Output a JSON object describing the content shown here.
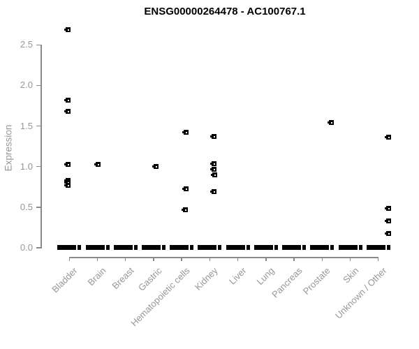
{
  "chart_data": {
    "type": "scatter",
    "subtype": "strip-plot",
    "title": "ENSG00000264478 - AC100767.1",
    "ylabel": "Expression",
    "xlabel": "",
    "ylim": [
      0,
      2.75
    ],
    "grid": false,
    "legend": "none",
    "marker": "small-open-square",
    "yticks": [
      {
        "value": 0.0,
        "label": "0.0"
      },
      {
        "value": 0.5,
        "label": "0.5"
      },
      {
        "value": 1.0,
        "label": "1.0"
      },
      {
        "value": 1.5,
        "label": "1.5"
      },
      {
        "value": 2.0,
        "label": "2.0"
      },
      {
        "value": 2.5,
        "label": "2.5"
      }
    ],
    "categories": [
      "Bladder",
      "Brain",
      "Breast",
      "Gastric",
      "Hematopoietic cells",
      "Kidney",
      "Liver",
      "Lung",
      "Pancreas",
      "Prostate",
      "Skin",
      "Unknown / Other"
    ],
    "groups": [
      {
        "label": "Bladder",
        "nonzero_values": [
          2.69,
          1.82,
          1.68,
          1.03,
          0.83,
          0.8,
          0.77
        ],
        "jitter_dx": [
          -2,
          -2,
          -2,
          -2,
          -2,
          -2,
          -2
        ],
        "zero_cluster": true
      },
      {
        "label": "Brain",
        "nonzero_values": [
          1.03
        ],
        "jitter_dx": [
          1
        ],
        "zero_cluster": true
      },
      {
        "label": "Breast",
        "nonzero_values": [],
        "jitter_dx": [],
        "zero_cluster": true
      },
      {
        "label": "Gastric",
        "nonzero_values": [
          1.0
        ],
        "jitter_dx": [
          4
        ],
        "zero_cluster": true
      },
      {
        "label": "Hematopoietic cells",
        "nonzero_values": [
          1.42,
          0.73,
          0.47
        ],
        "jitter_dx": [
          6,
          6,
          5
        ],
        "zero_cluster": true
      },
      {
        "label": "Kidney",
        "nonzero_values": [
          1.37,
          1.04,
          0.97,
          0.9,
          0.69
        ],
        "jitter_dx": [
          6,
          6,
          6,
          7,
          6
        ],
        "zero_cluster": true
      },
      {
        "label": "Liver",
        "nonzero_values": [],
        "jitter_dx": [],
        "zero_cluster": true
      },
      {
        "label": "Lung",
        "nonzero_values": [],
        "jitter_dx": [],
        "zero_cluster": true
      },
      {
        "label": "Pancreas",
        "nonzero_values": [],
        "jitter_dx": [],
        "zero_cluster": true
      },
      {
        "label": "Prostate",
        "nonzero_values": [
          1.54
        ],
        "jitter_dx": [
          13
        ],
        "zero_cluster": true
      },
      {
        "label": "Skin",
        "nonzero_values": [],
        "jitter_dx": [],
        "zero_cluster": true
      },
      {
        "label": "Unknown / Other",
        "nonzero_values": [
          1.36,
          0.49,
          0.33,
          0.18
        ],
        "jitter_dx": [
          15,
          15,
          15,
          15
        ],
        "zero_cluster": true
      }
    ],
    "colors": {
      "point": "#000000",
      "axis": "#8a8a8a",
      "tick_text": "#979797",
      "title_text": "#000000",
      "background": "#ffffff"
    }
  }
}
